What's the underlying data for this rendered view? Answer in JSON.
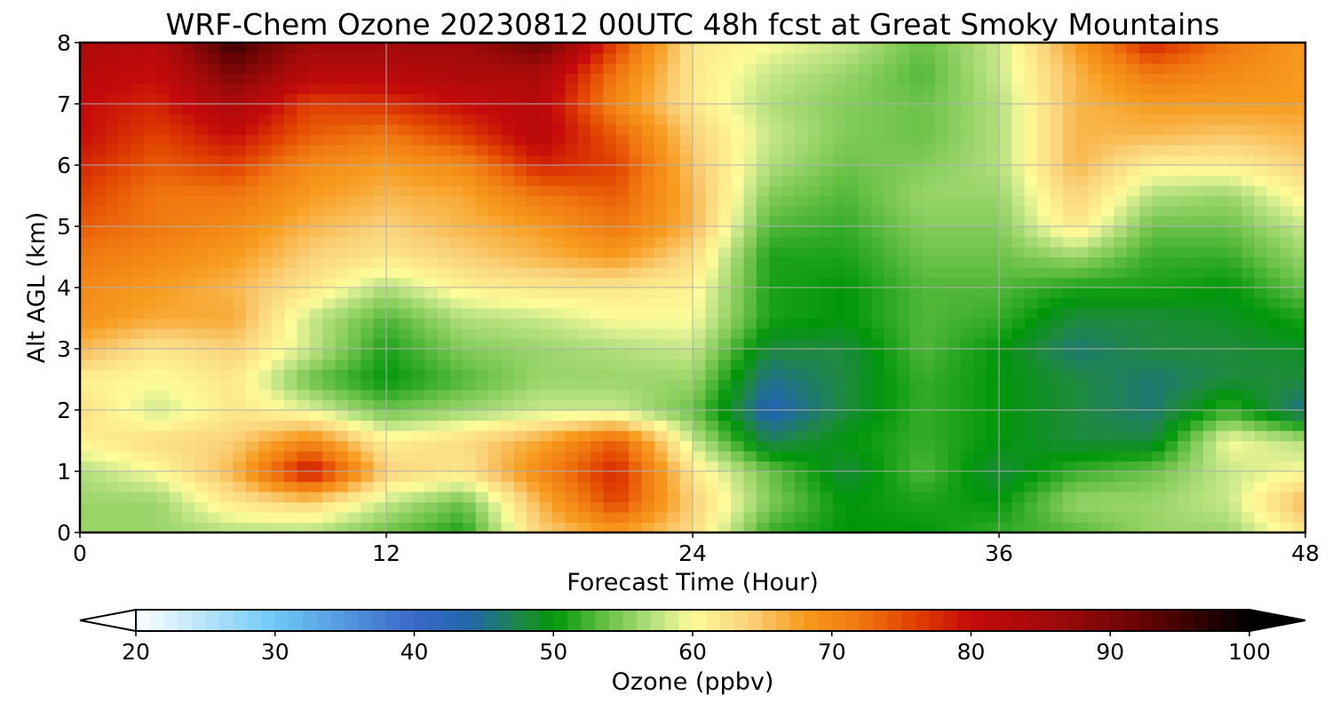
{
  "chart_data": {
    "type": "heatmap",
    "title": "WRF-Chem Ozone  20230812 00UTC 48h fcst at Great Smoky Mountains",
    "xlabel": "Forecast Time (Hour)",
    "ylabel": "Alt AGL (km)",
    "xlim": [
      0,
      48
    ],
    "ylim": [
      0,
      8
    ],
    "xticks": [
      "0",
      "12",
      "24",
      "36",
      "48"
    ],
    "yticks": [
      "0",
      "1",
      "2",
      "3",
      "4",
      "5",
      "6",
      "7",
      "8"
    ],
    "grid": true,
    "x": [
      0,
      3,
      6,
      9,
      12,
      15,
      18,
      21,
      24,
      27,
      30,
      33,
      36,
      39,
      42,
      45,
      48
    ],
    "y": [
      0,
      0.5,
      1,
      1.5,
      2,
      2.5,
      3,
      3.5,
      4,
      4.5,
      5,
      5.5,
      6,
      6.5,
      7,
      7.5,
      8
    ],
    "z": [
      [
        56,
        56,
        57,
        57,
        54,
        51,
        64,
        68,
        63,
        52,
        50,
        50,
        52,
        53,
        56,
        56,
        62
      ],
      [
        56,
        56,
        62,
        64,
        58,
        54,
        66,
        76,
        64,
        55,
        50,
        51,
        50,
        56,
        56,
        58,
        66
      ],
      [
        57,
        60,
        66,
        80,
        64,
        62,
        70,
        78,
        62,
        54,
        48,
        53,
        48,
        52,
        54,
        58,
        60
      ],
      [
        61,
        63,
        64,
        70,
        61,
        63,
        67,
        74,
        58,
        47,
        50,
        52,
        50,
        48,
        48,
        60,
        57
      ],
      [
        63,
        58,
        62,
        59,
        54,
        56,
        58,
        58,
        54,
        43,
        48,
        52,
        50,
        48,
        46,
        52,
        45
      ],
      [
        61,
        60,
        62,
        54,
        50,
        53,
        56,
        56,
        56,
        45,
        48,
        52,
        50,
        48,
        46,
        48,
        48
      ],
      [
        66,
        62,
        64,
        58,
        51,
        55,
        56,
        57,
        58,
        48,
        48,
        53,
        50,
        46,
        48,
        48,
        49
      ],
      [
        69,
        67,
        67,
        58,
        53,
        57,
        58,
        60,
        60,
        51,
        50,
        53,
        52,
        48,
        48,
        49,
        51
      ],
      [
        70,
        68,
        66,
        62,
        57,
        61,
        62,
        62,
        61,
        51,
        50,
        53,
        53,
        51,
        51,
        50,
        54
      ],
      [
        72,
        70,
        68,
        64,
        62,
        64,
        66,
        68,
        63,
        51,
        51,
        54,
        54,
        56,
        52,
        52,
        56
      ],
      [
        74,
        72,
        70,
        66,
        64,
        66,
        68,
        72,
        66,
        53,
        52,
        55,
        55,
        62,
        54,
        54,
        58
      ],
      [
        76,
        72,
        72,
        68,
        66,
        67,
        72,
        74,
        66,
        55,
        53,
        56,
        56,
        64,
        57,
        56,
        61
      ],
      [
        78,
        74,
        76,
        70,
        68,
        70,
        78,
        76,
        65,
        57,
        54,
        55,
        57,
        66,
        61,
        61,
        64
      ],
      [
        80,
        76,
        80,
        74,
        72,
        76,
        82,
        74,
        64,
        58,
        55,
        54,
        57,
        66,
        66,
        65,
        66
      ],
      [
        80,
        78,
        84,
        76,
        77,
        80,
        82,
        70,
        62,
        57,
        55,
        54,
        57,
        66,
        68,
        68,
        68
      ],
      [
        82,
        80,
        90,
        82,
        82,
        84,
        84,
        72,
        62,
        58,
        56,
        53,
        58,
        66,
        72,
        70,
        68
      ],
      [
        84,
        82,
        96,
        86,
        86,
        86,
        92,
        76,
        62,
        60,
        58,
        54,
        58,
        68,
        78,
        72,
        68
      ]
    ],
    "colorbar": {
      "label": "Ozone  (ppbv)",
      "range": [
        20,
        100
      ],
      "ticks": [
        "20",
        "30",
        "40",
        "50",
        "60",
        "70",
        "80",
        "90",
        "100"
      ],
      "extend": "both",
      "colors": {
        "20": "#ffffff",
        "30": "#6ec8f5",
        "40": "#3a68c8",
        "44": "#2166a8",
        "48": "#1e8a3c",
        "50": "#00960a",
        "54": "#6cc24a",
        "58": "#c8e88a",
        "60": "#fffc9a",
        "64": "#fad27a",
        "68": "#f79b1e",
        "72": "#f07810",
        "76": "#e04000",
        "80": "#c40a0a",
        "86": "#9e0a0a",
        "92": "#6a0404",
        "100": "#000000"
      }
    }
  }
}
